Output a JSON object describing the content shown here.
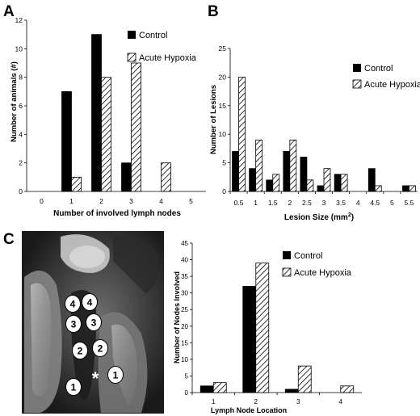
{
  "chart_data": [
    {
      "panel": "A",
      "type": "bar",
      "categories": [
        "0",
        "1",
        "2",
        "3",
        "4",
        "5"
      ],
      "series": [
        {
          "name": "Control",
          "values": [
            0,
            7,
            11,
            2,
            0,
            0
          ],
          "color": "#000000",
          "pattern": "solid"
        },
        {
          "name": "Acute Hypoxia",
          "values": [
            0,
            1,
            8,
            9,
            2,
            0
          ],
          "color": "#000000",
          "pattern": "hatch"
        }
      ],
      "xlabel": "Number of involved lymph nodes",
      "ylabel": "Number of animals (#)",
      "ylim": [
        0,
        12
      ],
      "yticks": [
        "0",
        "2",
        "4",
        "6",
        "8",
        "10",
        "12"
      ],
      "legend": "top-right",
      "grid": false
    },
    {
      "panel": "B",
      "type": "bar",
      "categories": [
        "0.5",
        "1",
        "1.5",
        "2",
        "2.5",
        "3",
        "3.5",
        "4",
        "4.5",
        "5",
        "5.5"
      ],
      "series": [
        {
          "name": "Control",
          "values": [
            7,
            4,
            2,
            7,
            6,
            1,
            3,
            0,
            4,
            0,
            1
          ],
          "color": "#000000",
          "pattern": "solid"
        },
        {
          "name": "Acute Hypoxia",
          "values": [
            20,
            9,
            3,
            9,
            2,
            4,
            3,
            0,
            1,
            0,
            1
          ],
          "color": "#000000",
          "pattern": "hatch"
        }
      ],
      "xlabel": "Lesion Size (mm",
      "xlabel_sup": "2",
      "xlabel_end": ")",
      "ylabel": "Number of Lesions",
      "ylim": [
        0,
        25
      ],
      "yticks": [
        "0",
        "5",
        "10",
        "15",
        "20",
        "25"
      ],
      "legend": "right",
      "grid": false
    },
    {
      "panel": "C",
      "type": "bar",
      "categories": [
        "1",
        "2",
        "3",
        "4"
      ],
      "series": [
        {
          "name": "Control",
          "values": [
            2,
            32,
            1,
            0
          ],
          "color": "#000000",
          "pattern": "solid"
        },
        {
          "name": "Acute Hypoxia",
          "values": [
            3,
            39,
            8,
            2
          ],
          "color": "#000000",
          "pattern": "hatch"
        }
      ],
      "xlabel": "Lymph Node Location",
      "ylabel": "Number of Nodes Involved",
      "ylim": [
        0,
        45
      ],
      "yticks": [
        "0",
        "5",
        "10",
        "15",
        "20",
        "25",
        "30",
        "35",
        "40",
        "45"
      ],
      "legend": "top-right",
      "grid": false
    }
  ],
  "photo": {
    "labels": [
      "4",
      "4",
      "3",
      "3",
      "2",
      "2",
      "1",
      "1"
    ],
    "asterisk": "*"
  }
}
